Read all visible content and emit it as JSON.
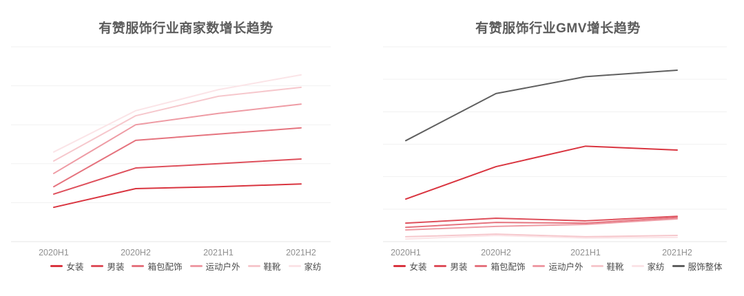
{
  "style": {
    "background": "#ffffff",
    "title_color": "#5c5c5c",
    "axis_label_color": "#909090",
    "legend_text_color": "#4c4c4c",
    "gridline_color": "#f1f1f1",
    "axis_line_color": "#e6e6e6"
  },
  "chart_data": [
    {
      "type": "line",
      "title": "有赞服饰行业商家数增长趋势",
      "categories": [
        "2020H1",
        "2020H2",
        "2021H1",
        "2021H2"
      ],
      "xlabel": "",
      "ylabel": "",
      "ylim": [
        0,
        5
      ],
      "grid": true,
      "legend_position": "bottom",
      "y_tick_labels_visible": false,
      "series": [
        {
          "name": "女装",
          "color": "#d9343f",
          "values": [
            0.88,
            1.36,
            1.41,
            1.48
          ]
        },
        {
          "name": "男装",
          "color": "#de4f5b",
          "values": [
            1.22,
            1.89,
            2.0,
            2.12
          ]
        },
        {
          "name": "箱包配饰",
          "color": "#e5737e",
          "values": [
            1.41,
            2.6,
            2.76,
            2.92
          ]
        },
        {
          "name": "运动户外",
          "color": "#ee9ba4",
          "values": [
            1.75,
            3.0,
            3.29,
            3.53
          ]
        },
        {
          "name": "鞋靴",
          "color": "#f6c7cc",
          "values": [
            2.07,
            3.23,
            3.73,
            3.96
          ]
        },
        {
          "name": "家纺",
          "color": "#fbe4e7",
          "values": [
            2.3,
            3.36,
            3.9,
            4.28
          ]
        }
      ]
    },
    {
      "type": "line",
      "title": "有赞服饰行业GMV增长趋势",
      "categories": [
        "2020H1",
        "2020H2",
        "2021H1",
        "2021H2"
      ],
      "xlabel": "",
      "ylabel": "",
      "ylim": [
        0,
        6
      ],
      "grid": true,
      "legend_position": "bottom",
      "y_tick_labels_visible": false,
      "series": [
        {
          "name": "女装",
          "color": "#d9343f",
          "values": [
            1.31,
            2.31,
            2.94,
            2.82
          ]
        },
        {
          "name": "男装",
          "color": "#de4f5b",
          "values": [
            0.57,
            0.72,
            0.64,
            0.78
          ]
        },
        {
          "name": "箱包配饰",
          "color": "#e5737e",
          "values": [
            0.44,
            0.59,
            0.57,
            0.74
          ]
        },
        {
          "name": "运动户外",
          "color": "#ee9ba4",
          "values": [
            0.36,
            0.47,
            0.53,
            0.7
          ]
        },
        {
          "name": "鞋靴",
          "color": "#f6c7cc",
          "values": [
            0.15,
            0.23,
            0.15,
            0.19
          ]
        },
        {
          "name": "家纺",
          "color": "#fbe4e7",
          "values": [
            0.08,
            0.19,
            0.11,
            0.13
          ]
        },
        {
          "name": "服饰整体",
          "color": "#5f5f5f",
          "values": [
            3.11,
            4.56,
            5.08,
            5.28
          ]
        }
      ]
    }
  ]
}
